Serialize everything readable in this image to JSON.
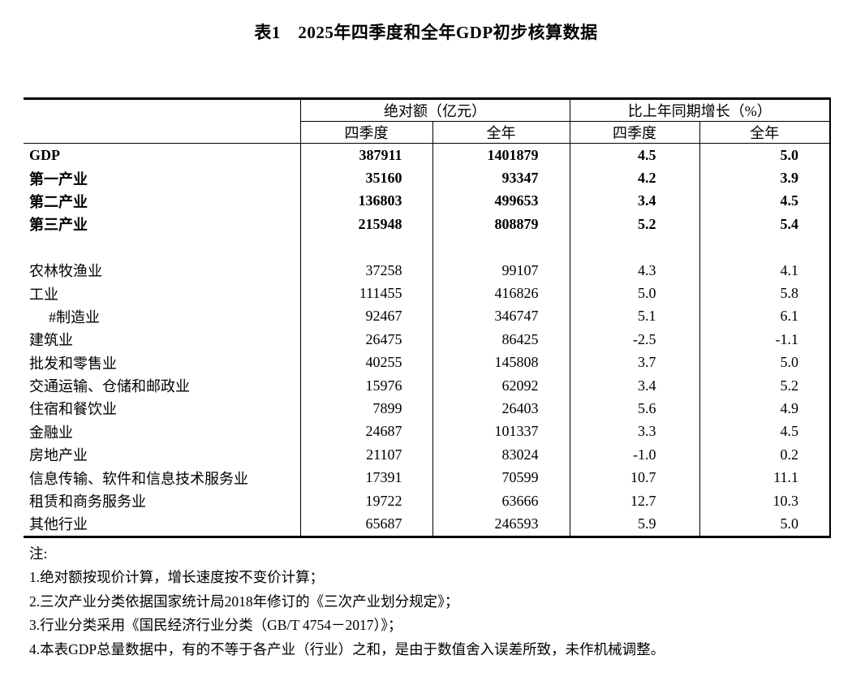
{
  "title": "表1　2025年四季度和全年GDP初步核算数据",
  "table": {
    "col_groups": [
      {
        "label": "绝对额（亿元）"
      },
      {
        "label": "比上年同期增长（%）"
      }
    ],
    "sub_headers": [
      "四季度",
      "全年",
      "四季度",
      "全年"
    ],
    "rows": [
      {
        "label": "GDP",
        "bold": true,
        "indent": false,
        "blank": false,
        "values": [
          "387911",
          "1401879",
          "4.5",
          "5.0"
        ]
      },
      {
        "label": "第一产业",
        "bold": true,
        "indent": false,
        "blank": false,
        "values": [
          "35160",
          "93347",
          "4.2",
          "3.9"
        ]
      },
      {
        "label": "第二产业",
        "bold": true,
        "indent": false,
        "blank": false,
        "values": [
          "136803",
          "499653",
          "3.4",
          "4.5"
        ]
      },
      {
        "label": "第三产业",
        "bold": true,
        "indent": false,
        "blank": false,
        "values": [
          "215948",
          "808879",
          "5.2",
          "5.4"
        ]
      },
      {
        "label": "",
        "bold": false,
        "indent": false,
        "blank": true,
        "values": [
          "",
          "",
          "",
          ""
        ]
      },
      {
        "label": "农林牧渔业",
        "bold": false,
        "indent": false,
        "blank": false,
        "values": [
          "37258",
          "99107",
          "4.3",
          "4.1"
        ]
      },
      {
        "label": "工业",
        "bold": false,
        "indent": false,
        "blank": false,
        "values": [
          "111455",
          "416826",
          "5.0",
          "5.8"
        ]
      },
      {
        "label": "#制造业",
        "bold": false,
        "indent": true,
        "blank": false,
        "values": [
          "92467",
          "346747",
          "5.1",
          "6.1"
        ]
      },
      {
        "label": "建筑业",
        "bold": false,
        "indent": false,
        "blank": false,
        "values": [
          "26475",
          "86425",
          "-2.5",
          "-1.1"
        ]
      },
      {
        "label": "批发和零售业",
        "bold": false,
        "indent": false,
        "blank": false,
        "values": [
          "40255",
          "145808",
          "3.7",
          "5.0"
        ]
      },
      {
        "label": "交通运输、仓储和邮政业",
        "bold": false,
        "indent": false,
        "blank": false,
        "values": [
          "15976",
          "62092",
          "3.4",
          "5.2"
        ]
      },
      {
        "label": "住宿和餐饮业",
        "bold": false,
        "indent": false,
        "blank": false,
        "values": [
          "7899",
          "26403",
          "5.6",
          "4.9"
        ]
      },
      {
        "label": "金融业",
        "bold": false,
        "indent": false,
        "blank": false,
        "values": [
          "24687",
          "101337",
          "3.3",
          "4.5"
        ]
      },
      {
        "label": "房地产业",
        "bold": false,
        "indent": false,
        "blank": false,
        "values": [
          "21107",
          "83024",
          "-1.0",
          "0.2"
        ]
      },
      {
        "label": "信息传输、软件和信息技术服务业",
        "bold": false,
        "indent": false,
        "blank": false,
        "values": [
          "17391",
          "70599",
          "10.7",
          "11.1"
        ]
      },
      {
        "label": "租赁和商务服务业",
        "bold": false,
        "indent": false,
        "blank": false,
        "values": [
          "19722",
          "63666",
          "12.7",
          "10.3"
        ]
      },
      {
        "label": "其他行业",
        "bold": false,
        "indent": false,
        "blank": false,
        "values": [
          "65687",
          "246593",
          "5.9",
          "5.0"
        ]
      }
    ]
  },
  "notes": {
    "heading": "注:",
    "items": [
      "1.绝对额按现价计算，增长速度按不变价计算；",
      "2.三次产业分类依据国家统计局2018年修订的《三次产业划分规定》；",
      "3.行业分类采用《国民经济行业分类（GB/T 4754－2017）》；",
      "4.本表GDP总量数据中，有的不等于各产业（行业）之和，是由于数值舍入误差所致，未作机械调整。"
    ]
  }
}
